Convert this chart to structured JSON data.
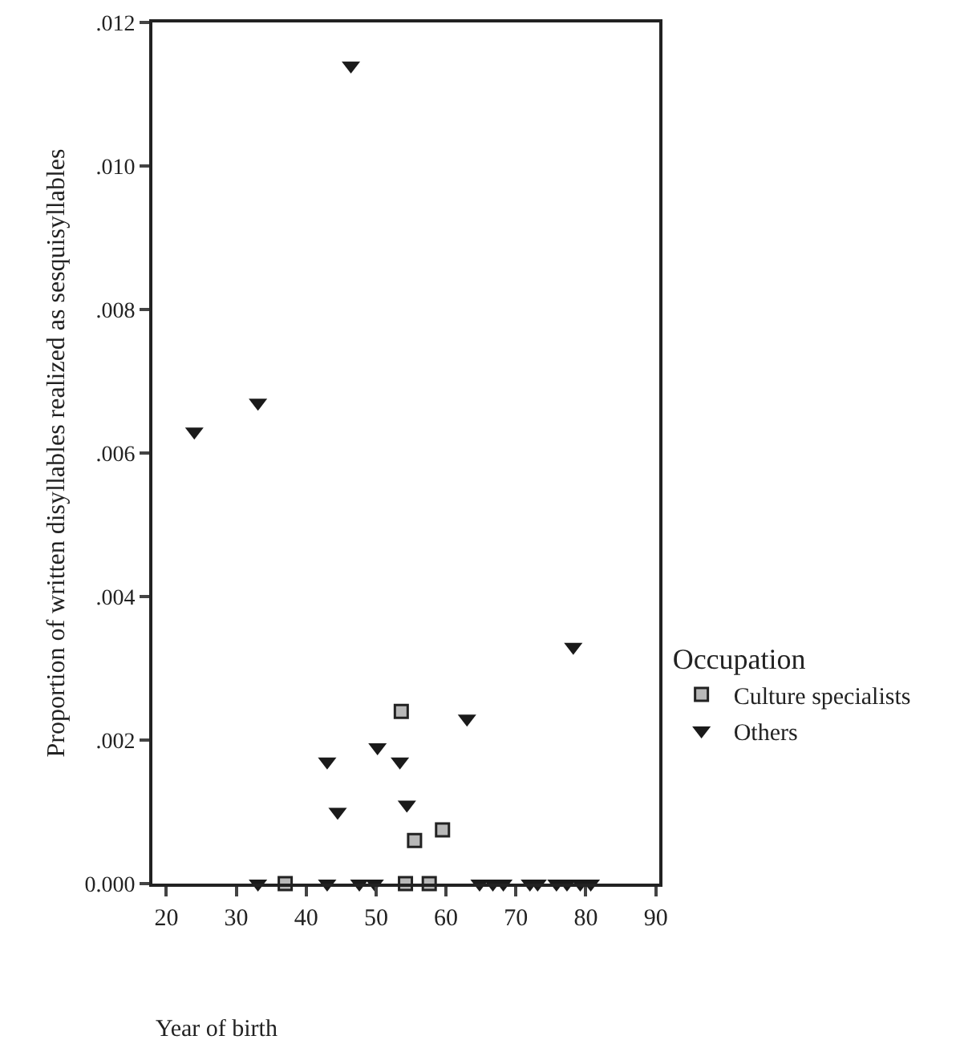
{
  "chart_data": {
    "type": "scatter",
    "xlabel": "Year of birth",
    "ylabel": "Proportion of written disyllables realized as sesquisyllables",
    "legend_title": "Occupation",
    "xlim": [
      18,
      90.5
    ],
    "xticks": [
      20,
      30,
      40,
      50,
      60,
      70,
      80,
      90
    ],
    "ylim": [
      0,
      0.012
    ],
    "yticks": [
      {
        "value": 0,
        "label": "0.000"
      },
      {
        "value": 0.002,
        "label": ".002"
      },
      {
        "value": 0.004,
        "label": ".004"
      },
      {
        "value": 0.006,
        "label": ".006"
      },
      {
        "value": 0.008,
        "label": ".008"
      },
      {
        "value": 0.01,
        "label": ".010"
      },
      {
        "value": 0.012,
        "label": ".012"
      }
    ],
    "legend": "right",
    "series": [
      {
        "name": "Culture specialists",
        "color": "#b8b8b8",
        "marker": "square",
        "x": [
          37.0,
          53.6,
          55.5,
          59.5,
          54.2,
          57.6
        ],
        "values": [
          0,
          0.0024,
          0.0006,
          0.00075,
          0,
          0
        ]
      },
      {
        "name": "Others",
        "color": "#1a1a1a",
        "marker": "triangle",
        "x": [
          24.0,
          33.1,
          46.4,
          33.1,
          43.0,
          47.6,
          49.8,
          43.0,
          44.5,
          50.2,
          53.4,
          54.4,
          63.0,
          78.2,
          64.8,
          66.7,
          68.2,
          72.0,
          73.1,
          75.8,
          77.3,
          79.2,
          80.7
        ],
        "values": [
          0.0063,
          0.0067,
          0.0114,
          0,
          0,
          0,
          0,
          0.0017,
          0.001,
          0.0019,
          0.0017,
          0.0011,
          0.0023,
          0.0033,
          0,
          0,
          0,
          0,
          0,
          0,
          0,
          0,
          0
        ]
      }
    ]
  }
}
